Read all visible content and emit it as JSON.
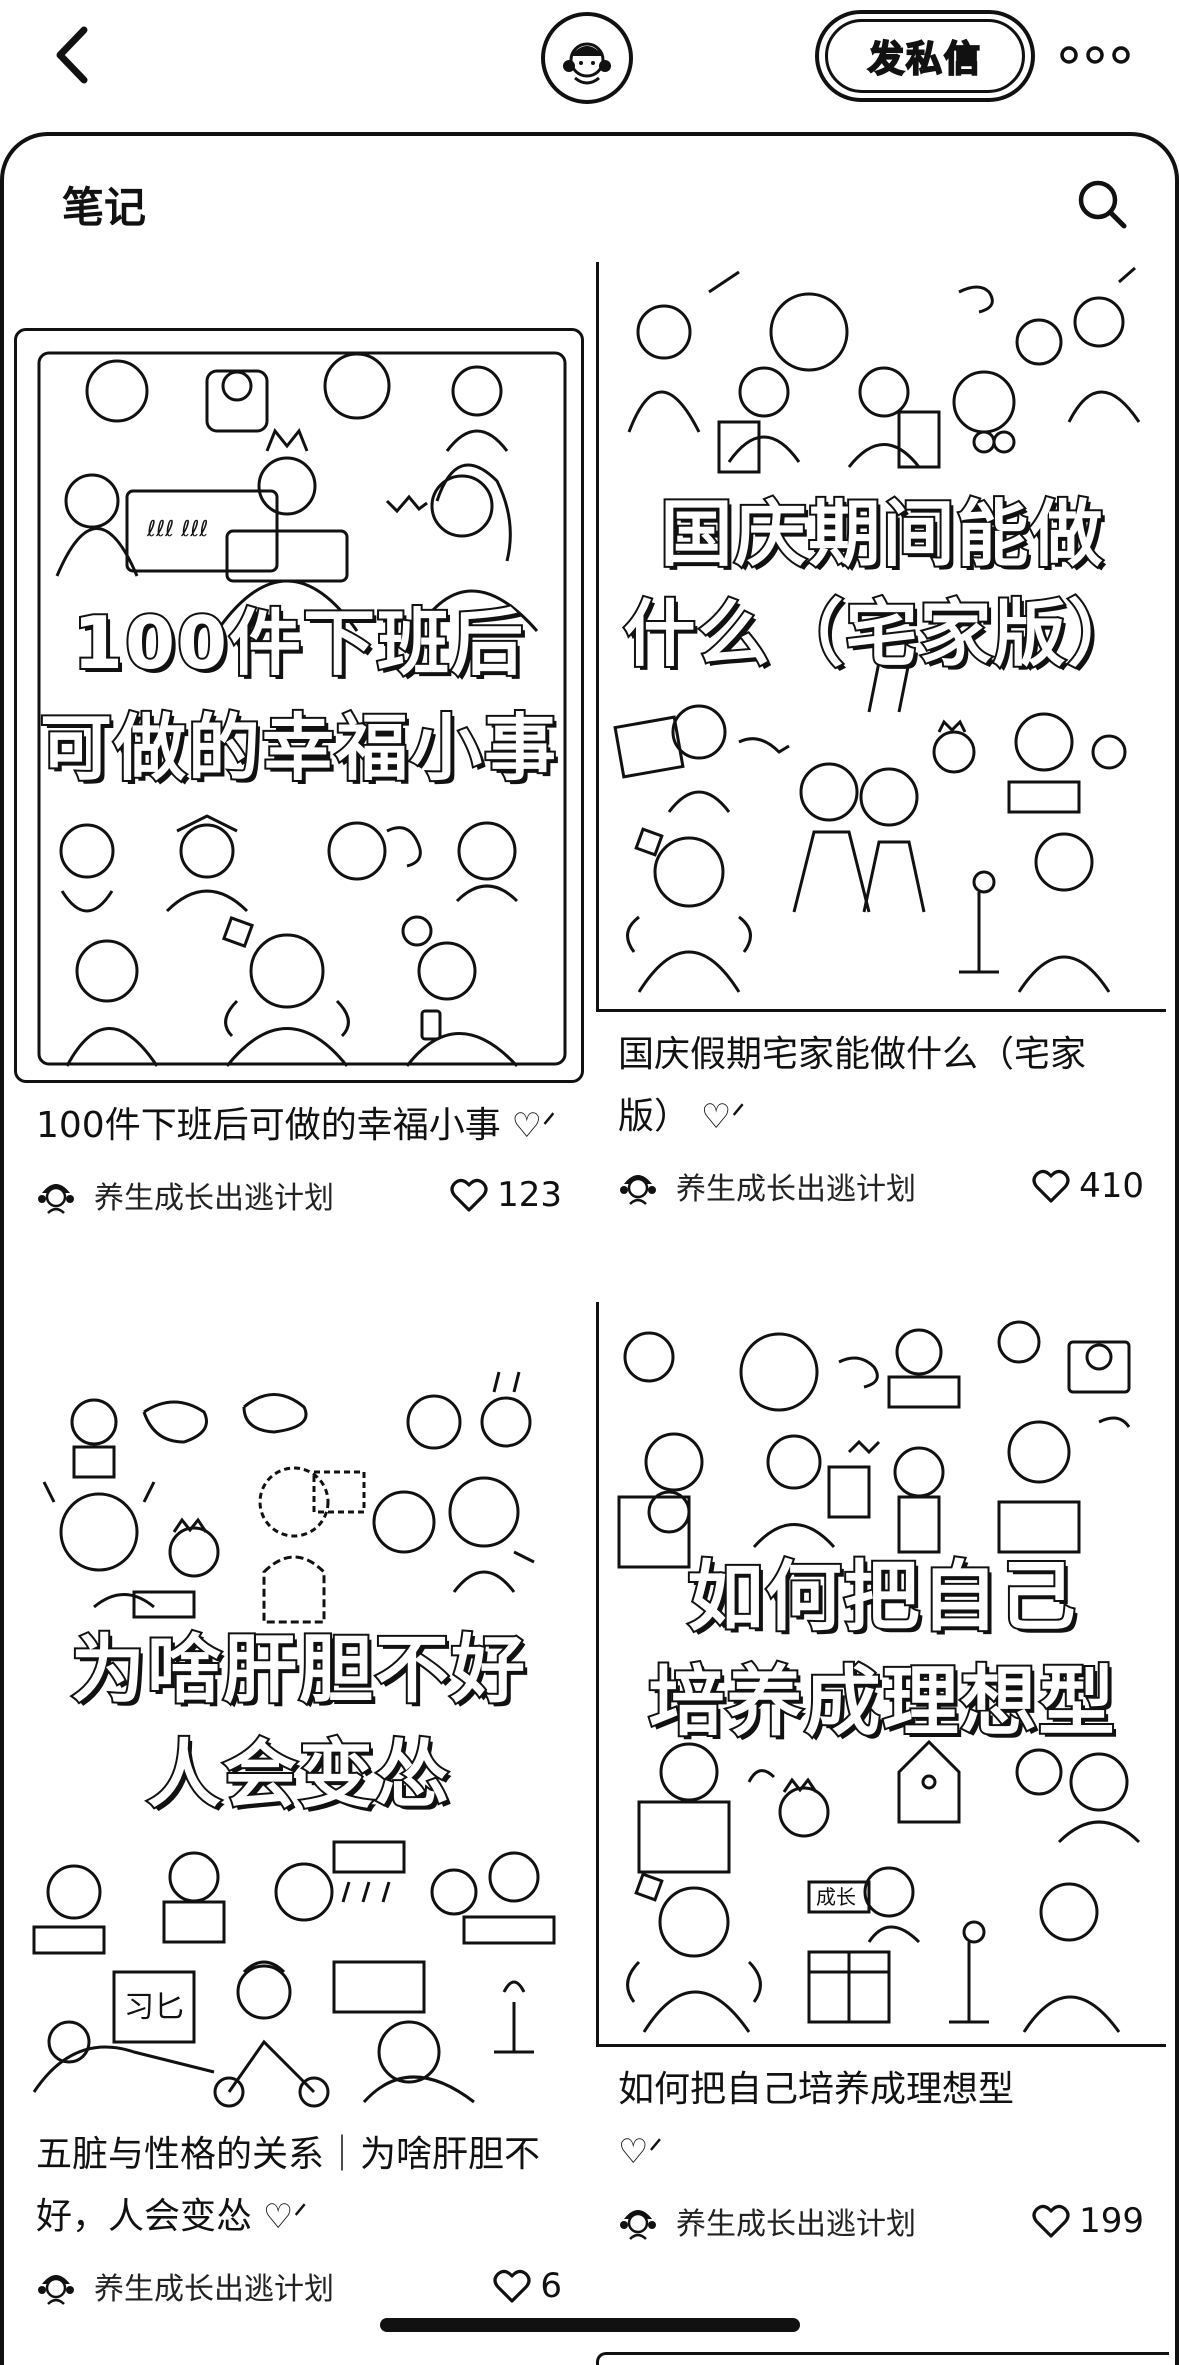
{
  "topbar": {
    "back_icon": "chevron-left-icon",
    "avatar_icon": "cartoon-girl-avatar-icon",
    "dm_label": "发私信",
    "more_icon": "more-dots-icon"
  },
  "sheet": {
    "title": "笔记",
    "search_icon": "search-icon"
  },
  "notes": [
    {
      "cover_lines": [
        "100件下班后",
        "可做的幸福小事"
      ],
      "title": "100件下班后可做的幸福小事",
      "author": "养生成长出逃计划",
      "likes": "123"
    },
    {
      "cover_lines": [
        "国庆期间能做",
        "什么（宅家版）"
      ],
      "title": "国庆假期宅家能做什么（宅家版）",
      "author": "养生成长出逃计划",
      "likes": "410"
    },
    {
      "cover_lines": [
        "为啥肝胆不好",
        "人会变怂"
      ],
      "title": "五脏与性格的关系｜为啥肝胆不好，人会变怂",
      "author": "养生成长出逃计划",
      "likes": "6"
    },
    {
      "cover_lines": [
        "如何把自己",
        "培养成理想型"
      ],
      "title": "如何把自己培养成理想型",
      "author": "养生成长出逃计划",
      "likes": "199"
    }
  ],
  "colors": {
    "ink": "#111111",
    "background": "#ffffff"
  }
}
